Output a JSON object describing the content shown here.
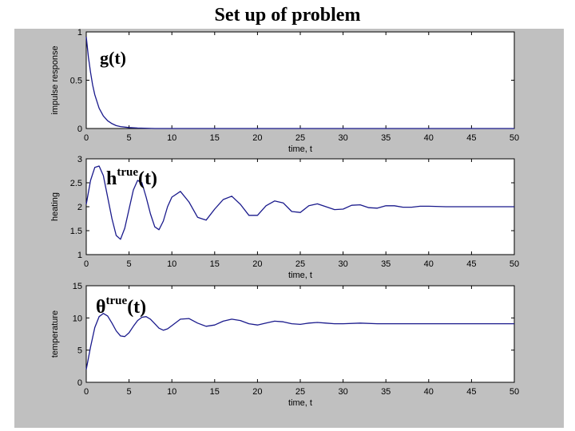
{
  "title": "Set up of problem",
  "colors": {
    "figure_bg": "#c0c0c0",
    "axes_bg": "#ffffff",
    "line": "#1a1a8c"
  },
  "chart_data": [
    {
      "type": "line",
      "xlabel": "time, t",
      "ylabel": "impulse response",
      "annotation": {
        "base": "g(t)",
        "sup": ""
      },
      "xlim": [
        0,
        50
      ],
      "ylim": [
        0,
        1
      ],
      "xticks": [
        "0",
        "5",
        "10",
        "15",
        "20",
        "25",
        "30",
        "35",
        "40",
        "45",
        "50"
      ],
      "yticks": [
        "0",
        "0.5",
        "1"
      ],
      "series": [
        {
          "x": [
            0,
            0.25,
            0.5,
            0.75,
            1,
            1.5,
            2,
            2.5,
            3,
            3.5,
            4,
            5,
            6,
            8,
            10,
            15,
            20,
            30,
            40,
            50
          ],
          "y": [
            0.95,
            0.74,
            0.58,
            0.45,
            0.35,
            0.21,
            0.13,
            0.08,
            0.05,
            0.03,
            0.02,
            0.01,
            0.005,
            0,
            0,
            0,
            0,
            0,
            0,
            0
          ]
        }
      ]
    },
    {
      "type": "line",
      "xlabel": "time, t",
      "ylabel": "heating",
      "annotation": {
        "base": "h",
        "sup": "true",
        "suffix": "(t)"
      },
      "xlim": [
        0,
        50
      ],
      "ylim": [
        1,
        3
      ],
      "xticks": [
        "0",
        "5",
        "10",
        "15",
        "20",
        "25",
        "30",
        "35",
        "40",
        "45",
        "50"
      ],
      "yticks": [
        "1",
        "1.5",
        "2",
        "2.5",
        "3"
      ],
      "series": [
        {
          "x": [
            0,
            0.5,
            1,
            1.5,
            2,
            2.5,
            3,
            3.5,
            4,
            4.5,
            5,
            5.5,
            6,
            6.5,
            7,
            7.5,
            8,
            8.5,
            9,
            9.5,
            10,
            11,
            12,
            13,
            14,
            15,
            16,
            17,
            18,
            19,
            20,
            21,
            22,
            23,
            24,
            25,
            26,
            27,
            28,
            29,
            30,
            31,
            32,
            33,
            34,
            35,
            36,
            37,
            38,
            39,
            40,
            42,
            44,
            46,
            48,
            50
          ],
          "y": [
            2.05,
            2.55,
            2.82,
            2.85,
            2.65,
            2.2,
            1.75,
            1.4,
            1.32,
            1.55,
            1.95,
            2.35,
            2.55,
            2.5,
            2.2,
            1.85,
            1.58,
            1.52,
            1.7,
            2.0,
            2.2,
            2.32,
            2.1,
            1.78,
            1.72,
            1.95,
            2.15,
            2.22,
            2.05,
            1.82,
            1.82,
            2.02,
            2.12,
            2.08,
            1.9,
            1.88,
            2.02,
            2.06,
            2.0,
            1.94,
            1.95,
            2.03,
            2.04,
            1.98,
            1.97,
            2.02,
            2.02,
            1.99,
            1.99,
            2.01,
            2.01,
            2.0,
            2.0,
            2.0,
            2.0,
            2.0
          ]
        }
      ]
    },
    {
      "type": "line",
      "xlabel": "time, t",
      "ylabel": "temperature",
      "annotation": {
        "base": "θ",
        "sup": "true",
        "suffix": "(t)"
      },
      "xlim": [
        0,
        50
      ],
      "ylim": [
        0,
        15
      ],
      "xticks": [
        "0",
        "5",
        "10",
        "15",
        "20",
        "25",
        "30",
        "35",
        "40",
        "45",
        "50"
      ],
      "yticks": [
        "0",
        "5",
        "10",
        "15"
      ],
      "series": [
        {
          "x": [
            0,
            0.5,
            1,
            1.5,
            2,
            2.5,
            3,
            3.5,
            4,
            4.5,
            5,
            5.5,
            6,
            6.5,
            7,
            7.5,
            8,
            8.5,
            9,
            9.5,
            10,
            11,
            12,
            13,
            14,
            15,
            16,
            17,
            18,
            19,
            20,
            21,
            22,
            23,
            24,
            25,
            26,
            27,
            28,
            29,
            30,
            32,
            34,
            36,
            38,
            40,
            42,
            44,
            46,
            48,
            50
          ],
          "y": [
            2.0,
            5.5,
            8.5,
            10.2,
            10.7,
            10.3,
            9.2,
            8.0,
            7.2,
            7.1,
            7.7,
            8.7,
            9.6,
            10.1,
            10.2,
            9.8,
            9.1,
            8.4,
            8.1,
            8.3,
            8.8,
            9.8,
            9.9,
            9.2,
            8.7,
            8.9,
            9.5,
            9.8,
            9.6,
            9.1,
            8.9,
            9.2,
            9.5,
            9.4,
            9.1,
            9.0,
            9.2,
            9.3,
            9.2,
            9.1,
            9.1,
            9.2,
            9.1,
            9.1,
            9.1,
            9.1,
            9.1,
            9.1,
            9.1,
            9.1,
            9.1
          ]
        }
      ]
    }
  ]
}
